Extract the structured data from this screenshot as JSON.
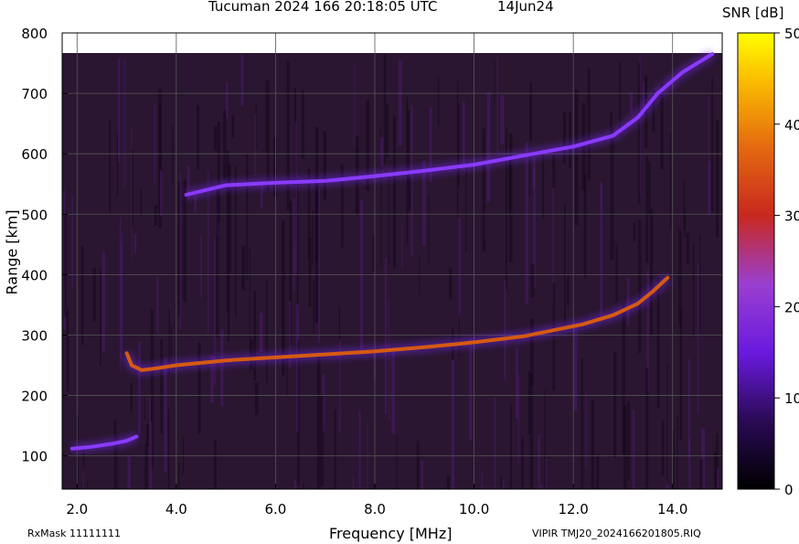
{
  "header": {
    "title": "Tucuman 2024 166 20:18:05 UTC",
    "date": "14Jun24"
  },
  "footer": {
    "rxmask": "RxMask 11111111",
    "source": "VIPIR  TMJ20_2024166201805.RIQ"
  },
  "chart_data": {
    "type": "heatmap",
    "title": "Tucuman 2024 166 20:18:05 UTC",
    "xlabel": "Frequency [MHz]",
    "ylabel": "Range [km]",
    "xlim": [
      1.7,
      15.0
    ],
    "ylim": [
      45,
      800
    ],
    "x_ticks": [
      "2.0",
      "4.0",
      "6.0",
      "8.0",
      "10.0",
      "12.0",
      "14.0"
    ],
    "x_tick_values": [
      2,
      4,
      6,
      8,
      10,
      12,
      14
    ],
    "y_ticks": [
      "100",
      "200",
      "300",
      "400",
      "500",
      "600",
      "700",
      "800"
    ],
    "y_tick_values": [
      100,
      200,
      300,
      400,
      500,
      600,
      700,
      800
    ],
    "colorbar": {
      "label": "SNR [dB]",
      "range": [
        0,
        50
      ],
      "ticks": [
        "0",
        "10",
        "20",
        "30",
        "40",
        "50"
      ],
      "tick_values": [
        0,
        10,
        20,
        30,
        40,
        50
      ]
    },
    "grid": true,
    "traces": [
      {
        "name": "",
        "points": [
          [
            1.9,
            112
          ],
          [
            2.3,
            115
          ],
          [
            2.7,
            120
          ],
          [
            3.0,
            125
          ],
          [
            3.2,
            132
          ]
        ],
        "snr": 14
      },
      {
        "name": "",
        "points": [
          [
            3.0,
            270
          ],
          [
            3.1,
            250
          ],
          [
            3.3,
            242
          ],
          [
            3.6,
            245
          ],
          [
            4.0,
            250
          ],
          [
            5.0,
            258
          ],
          [
            6.0,
            263
          ],
          [
            7.0,
            268
          ],
          [
            8.0,
            273
          ],
          [
            9.0,
            280
          ],
          [
            10.0,
            288
          ],
          [
            11.0,
            298
          ],
          [
            11.6,
            308
          ],
          [
            12.2,
            318
          ],
          [
            12.8,
            333
          ],
          [
            13.3,
            352
          ],
          [
            13.6,
            372
          ],
          [
            13.9,
            395
          ]
        ],
        "snr": 28
      },
      {
        "name": "",
        "points": [
          [
            4.2,
            532
          ],
          [
            5.0,
            548
          ],
          [
            6.0,
            552
          ],
          [
            7.0,
            555
          ],
          [
            8.0,
            563
          ],
          [
            9.0,
            572
          ],
          [
            10.0,
            582
          ],
          [
            11.0,
            597
          ],
          [
            12.0,
            612
          ],
          [
            12.8,
            630
          ],
          [
            13.3,
            660
          ],
          [
            13.7,
            700
          ],
          [
            14.2,
            735
          ],
          [
            14.8,
            765
          ]
        ],
        "snr": 15
      }
    ]
  }
}
